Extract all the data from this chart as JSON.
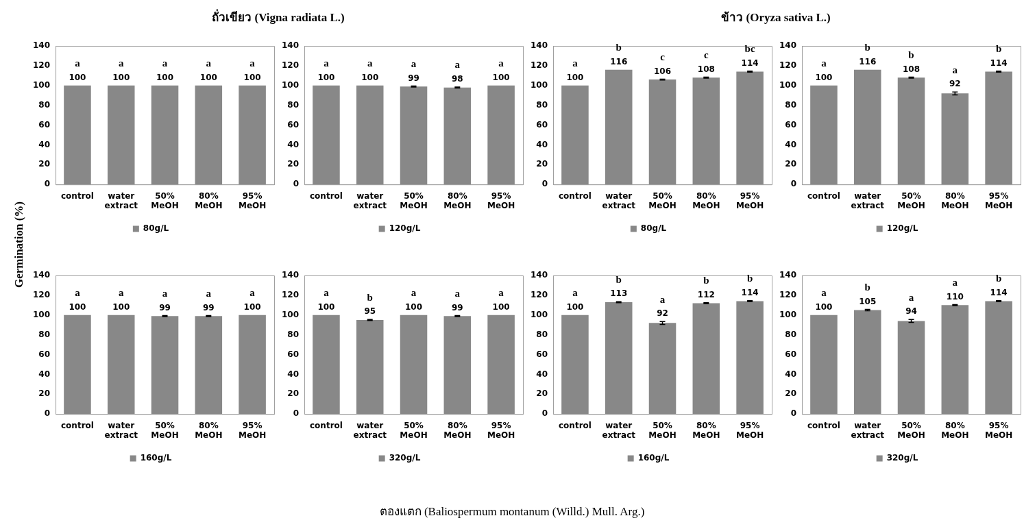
{
  "chart_data": [
    {
      "type": "bar",
      "title": "ถั่วเขียว (Vigna radiata L.)",
      "ylabel": "Germination (%)",
      "categories": [
        "control",
        "water extract",
        "50% MeOH",
        "80% MeOH",
        "95% MeOH"
      ],
      "series": [
        {
          "name": "80g/L",
          "color": "#888888",
          "values": [
            100,
            100,
            100,
            100,
            100
          ]
        }
      ],
      "ylim": [
        0,
        140
      ],
      "yticks": [
        0,
        20,
        40,
        60,
        80,
        100,
        120,
        140
      ],
      "data_labels": true,
      "legend": "bottom",
      "grid": false,
      "annotations": [
        "a",
        "a",
        "a",
        "a",
        "a"
      ]
    },
    {
      "type": "bar",
      "categories": [
        "control",
        "water extract",
        "50% MeOH",
        "80% MeOH",
        "95% MeOH"
      ],
      "series": [
        {
          "name": "120g/L",
          "color": "#888888",
          "values": [
            100,
            100,
            99,
            98,
            100
          ],
          "errors": [
            null,
            null,
            0.5,
            0.5,
            null
          ]
        }
      ],
      "ylim": [
        0,
        140
      ],
      "yticks": [
        0,
        20,
        40,
        60,
        80,
        100,
        120,
        140
      ],
      "data_labels": true,
      "legend": "bottom",
      "grid": false,
      "annotations": [
        "a",
        "a",
        "a",
        "a",
        "a"
      ]
    },
    {
      "type": "bar",
      "title": "ข้าว  (Oryza sativa L.)",
      "categories": [
        "control",
        "water extract",
        "50% MeOH",
        "80% MeOH",
        "95% MeOH"
      ],
      "series": [
        {
          "name": "80g/L",
          "color": "#888888",
          "values": [
            100,
            116,
            106,
            108,
            114
          ],
          "errors": [
            null,
            null,
            0.5,
            0.5,
            0.5
          ]
        }
      ],
      "ylim": [
        0,
        140
      ],
      "yticks": [
        0,
        20,
        40,
        60,
        80,
        100,
        120,
        140
      ],
      "data_labels": true,
      "legend": "bottom",
      "grid": false,
      "annotations": [
        "a",
        "b",
        "c",
        "c",
        "bc"
      ]
    },
    {
      "type": "bar",
      "categories": [
        "control",
        "water extract",
        "50% MeOH",
        "80% MeOH",
        "95% MeOH"
      ],
      "series": [
        {
          "name": "120g/L",
          "color": "#888888",
          "values": [
            100,
            116,
            108,
            92,
            114
          ],
          "errors": [
            null,
            null,
            0.5,
            1.5,
            0.5
          ]
        }
      ],
      "ylim": [
        0,
        140
      ],
      "yticks": [
        0,
        20,
        40,
        60,
        80,
        100,
        120,
        140
      ],
      "data_labels": true,
      "legend": "bottom",
      "grid": false,
      "annotations": [
        "a",
        "b",
        "b",
        "a",
        "b"
      ]
    },
    {
      "type": "bar",
      "categories": [
        "control",
        "water extract",
        "50% MeOH",
        "80% MeOH",
        "95% MeOH"
      ],
      "series": [
        {
          "name": "160g/L",
          "color": "#888888",
          "values": [
            100,
            100,
            99,
            99,
            100
          ],
          "errors": [
            null,
            null,
            0.5,
            0.5,
            null
          ]
        }
      ],
      "ylim": [
        0,
        140
      ],
      "yticks": [
        0,
        20,
        40,
        60,
        80,
        100,
        120,
        140
      ],
      "data_labels": true,
      "legend": "bottom",
      "grid": false,
      "annotations": [
        "a",
        "a",
        "a",
        "a",
        "a",
        "ตองแตก (Baliospermum montanum  (Willd.) Mull. Arg.)"
      ]
    },
    {
      "type": "bar",
      "categories": [
        "control",
        "water extract",
        "50% MeOH",
        "80% MeOH",
        "95% MeOH"
      ],
      "series": [
        {
          "name": "320g/L",
          "color": "#888888",
          "values": [
            100,
            95,
            100,
            99,
            100
          ],
          "errors": [
            null,
            0.5,
            null,
            0.5,
            null
          ]
        }
      ],
      "ylim": [
        0,
        140
      ],
      "yticks": [
        0,
        20,
        40,
        60,
        80,
        100,
        120,
        140
      ],
      "data_labels": true,
      "legend": "bottom",
      "grid": false,
      "annotations": [
        "a",
        "b",
        "a",
        "a",
        "a"
      ]
    },
    {
      "type": "bar",
      "categories": [
        "control",
        "water extract",
        "50% MeOH",
        "80% MeOH",
        "95% MeOH"
      ],
      "series": [
        {
          "name": "160g/L",
          "color": "#888888",
          "values": [
            100,
            113,
            92,
            112,
            114
          ],
          "errors": [
            null,
            0.5,
            1.5,
            0.5,
            0.5
          ]
        }
      ],
      "ylim": [
        0,
        140
      ],
      "yticks": [
        0,
        20,
        40,
        60,
        80,
        100,
        120,
        140
      ],
      "data_labels": true,
      "legend": "bottom",
      "grid": false,
      "annotations": [
        "a",
        "b",
        "a",
        "b",
        "b"
      ]
    },
    {
      "type": "bar",
      "categories": [
        "control",
        "water extract",
        "50% MeOH",
        "80% MeOH",
        "95% MeOH"
      ],
      "series": [
        {
          "name": "320g/L",
          "color": "#888888",
          "values": [
            100,
            105,
            94,
            110,
            114
          ],
          "errors": [
            null,
            0.7,
            1.5,
            0.5,
            0.5
          ]
        }
      ],
      "ylim": [
        0,
        140
      ],
      "yticks": [
        0,
        20,
        40,
        60,
        80,
        100,
        120,
        140
      ],
      "data_labels": true,
      "legend": "bottom",
      "grid": false,
      "annotations": [
        "a",
        "b",
        "a",
        "a",
        "b"
      ]
    }
  ]
}
